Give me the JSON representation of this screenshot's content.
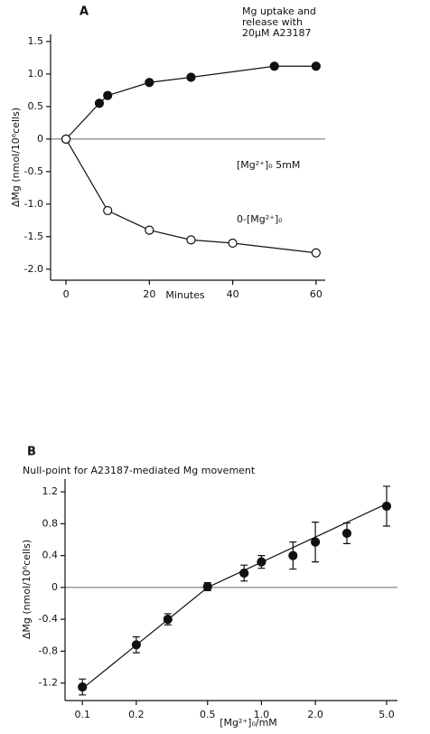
{
  "chart_data": [
    {
      "type": "scatter",
      "title": "A",
      "annotation": [
        "Mg uptake and",
        "release with",
        "20μM A23187"
      ],
      "x_label": "Minutes",
      "y_label": "ΔMg (nmol/10⁶cells)",
      "xlim": [
        -3.7,
        62.2
      ],
      "ylim": [
        -2.17,
        1.61
      ],
      "xticks": [
        0,
        20,
        40,
        60
      ],
      "yticks": [
        1.5,
        {
          "value": 1,
          "label": "1.0"
        },
        0.5,
        0,
        -0.5,
        {
          "value": -1,
          "label": "-1.0"
        },
        -1.5,
        {
          "value": -2,
          "label": "-2.0"
        }
      ],
      "series": [
        {
          "name": "[Mg²⁺]₀ 5mM",
          "color": "#111111",
          "fill": "#111111",
          "line": true,
          "x": [
            0,
            8,
            10,
            20,
            30,
            50,
            60
          ],
          "values": [
            0,
            0.55,
            0.67,
            0.87,
            0.95,
            1.12,
            1.12
          ]
        },
        {
          "name": "0-[Mg²⁺]₀",
          "color": "#111111",
          "fill": "#ffffff",
          "line": true,
          "x": [
            0,
            10,
            20,
            30,
            40,
            60
          ],
          "values": [
            0,
            -1.1,
            -1.4,
            -1.55,
            -1.6,
            -1.75
          ]
        }
      ]
    },
    {
      "type": "scatter",
      "title": "B",
      "subtitle": "Null-point for A23187-mediated  Mg movement",
      "x_label": "[Mg²⁺]₀/mM",
      "y_label": "ΔMg (nmol/10⁶cells)",
      "xscale": "log",
      "xlim": [
        0.08,
        5.75
      ],
      "ylim": [
        -1.42,
        1.36
      ],
      "xticks": [
        0.1,
        0.2,
        0.5,
        {
          "value": 1,
          "label": "1.0"
        },
        {
          "value": 2,
          "label": "2.0"
        },
        {
          "value": 5,
          "label": "5.0"
        }
      ],
      "yticks": [
        1.2,
        0.8,
        0.4,
        0,
        -0.4,
        -0.8,
        -1.2
      ],
      "series": [
        {
          "color": "#111111",
          "fill": "#111111",
          "line": false,
          "x": [
            0.1,
            0.2,
            0.3,
            0.5,
            0.8,
            1.0,
            1.5,
            2.0,
            3.0,
            5.0
          ],
          "values": [
            -1.25,
            -0.72,
            -0.4,
            0.01,
            0.18,
            0.32,
            0.4,
            0.57,
            0.68,
            1.02
          ],
          "errors": [
            0.1,
            0.1,
            0.07,
            0.05,
            0.1,
            0.08,
            0.17,
            0.25,
            0.13,
            0.25
          ]
        },
        {
          "color": "#111111",
          "line": true,
          "x": [
            0.1,
            0.5,
            5.0
          ],
          "values": [
            -1.27,
            0,
            1.05
          ]
        }
      ]
    }
  ]
}
